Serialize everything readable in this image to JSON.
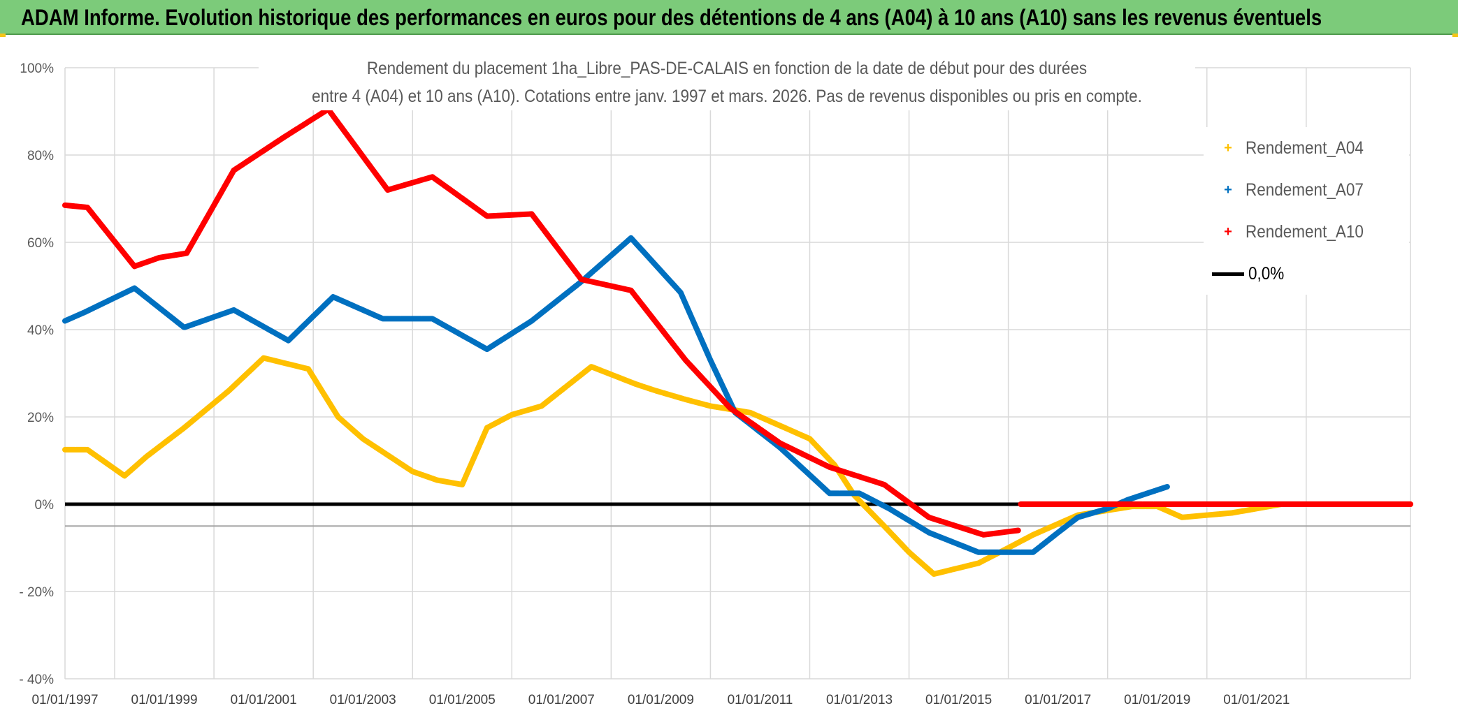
{
  "banner": {
    "title": "ADAM Informe. Evolution historique des performances en euros pour des détentions de 4 ans (A04) à 10 ans (A10) sans les revenus éventuels"
  },
  "colors": {
    "banner_bg": "#7ccb7a",
    "a04": "#ffc000",
    "a07": "#0070c0",
    "a10": "#ff0000",
    "zero": "#000000"
  },
  "chart_data": {
    "type": "line",
    "title_lines": [
      "Rendement du placement 1ha_Libre_PAS-DE-CALAIS en fonction de la date de début pour des durées",
      "entre 4 (A04) et 10 ans (A10). Cotations entre janv. 1997 et mars. 2026. Pas de revenus disponibles ou pris en compte."
    ],
    "x_range": [
      1997.0,
      2024.1
    ],
    "x_tick_labels": [
      "01/01/1997",
      "01/01/1999",
      "01/01/2001",
      "01/01/2003",
      "01/01/2005",
      "01/01/2007",
      "01/01/2009",
      "01/01/2011",
      "01/01/2013",
      "01/01/2015",
      "01/01/2017",
      "01/01/2019",
      "01/01/2021"
    ],
    "x_tick_years": [
      1997,
      1999,
      2001,
      2003,
      2005,
      2007,
      2009,
      2011,
      2013,
      2015,
      2017,
      2019,
      2021
    ],
    "x_minor_grid_years": [
      1997,
      1998,
      2000,
      2002,
      2004,
      2006,
      2008,
      2010,
      2012,
      2014,
      2016,
      2018,
      2020,
      2022,
      2024.1
    ],
    "y_range": [
      -40,
      100
    ],
    "y_ticks": [
      -40,
      -20,
      0,
      20,
      40,
      60,
      80,
      100
    ],
    "y_tick_labels": [
      "- 40%",
      "- 20%",
      "0%",
      "20%",
      "40%",
      "60%",
      "80%",
      "100%"
    ],
    "extra_hline": -5,
    "legend": [
      "Rendement_A04",
      "Rendement_A07",
      "Rendement_A10",
      "0,0%"
    ],
    "series": [
      {
        "name": "Rendement_A04",
        "color": "#ffc000",
        "x": [
          1997.0,
          1997.45,
          1998.2,
          1998.65,
          1999.4,
          2000.3,
          2001.0,
          2001.9,
          2002.5,
          2003.0,
          2004.0,
          2004.5,
          2005.0,
          2005.5,
          2006.0,
          2006.6,
          2007.6,
          2008.5,
          2008.9,
          2009.5,
          2010.0,
          2010.8,
          2011.5,
          2012.0,
          2012.5,
          2012.9,
          2013.5,
          2014.0,
          2014.5,
          2015.4,
          2016.0,
          2016.5,
          2017.4,
          2018.5,
          2019.0,
          2019.5,
          2020.0,
          2020.5,
          2021.0,
          2021.5,
          2022.3,
          2022.9,
          2024.1
        ],
        "values": [
          12.5,
          12.5,
          6.5,
          11,
          17.5,
          26,
          33.5,
          31,
          20,
          15,
          7.5,
          5.5,
          4.5,
          17.5,
          20.5,
          22.5,
          31.5,
          27.5,
          26,
          24,
          22.5,
          21,
          17.5,
          15,
          9,
          2,
          -5,
          -11,
          -16,
          -13.5,
          -10,
          -7,
          -2.5,
          -0.5,
          -0.5,
          -3,
          -2.5,
          -2,
          -1,
          0,
          0,
          0,
          0
        ]
      },
      {
        "name": "Rendement_A07",
        "color": "#0070c0",
        "x": [
          1997.0,
          1997.4,
          1998.4,
          1999.4,
          2000.4,
          2001.5,
          2002.4,
          2003.4,
          2004.4,
          2005.5,
          2006.4,
          2007.4,
          2008.4,
          2009.4,
          2010.0,
          2010.5,
          2011.4,
          2012.4,
          2013.0,
          2013.6,
          2014.4,
          2015.4,
          2016.0,
          2016.5,
          2017.0,
          2017.4,
          2018.0,
          2018.4,
          2019.2
        ],
        "values": [
          42,
          44,
          49.5,
          40.5,
          44.5,
          37.5,
          47.5,
          42.5,
          42.5,
          35.5,
          42,
          51,
          61,
          48.5,
          33,
          21,
          13,
          2.5,
          2.5,
          -1,
          -6.5,
          -11,
          -11,
          -11,
          -6.5,
          -3,
          -1,
          1,
          4
        ]
      },
      {
        "name": "Rendement_A10",
        "color": "#ff0000",
        "x": [
          1997.0,
          1997.45,
          1998.4,
          1998.9,
          1999.45,
          2000.4,
          2001.4,
          2002.3,
          2003.5,
          2004.4,
          2005.5,
          2006.4,
          2007.4,
          2008.4,
          2009.5,
          2010.4,
          2011.4,
          2012.4,
          2013.5,
          2014.4,
          2015.5,
          2016.2
        ],
        "values": [
          68.5,
          68,
          54.5,
          56.5,
          57.5,
          76.5,
          84,
          90.5,
          72,
          75,
          66,
          66.5,
          51.5,
          49,
          33,
          22,
          14,
          8.5,
          4.5,
          -3,
          -7,
          -6
        ]
      },
      {
        "name": "Rendement_A10_tail",
        "color": "#ff0000",
        "x": [
          2018.5,
          2024.1
        ],
        "values": [
          0,
          0
        ]
      },
      {
        "name": "Rendement_A10_tail_start",
        "color": "#ff0000",
        "x": [
          2016.25,
          2018.5
        ],
        "values": [
          0,
          0
        ]
      }
    ]
  }
}
